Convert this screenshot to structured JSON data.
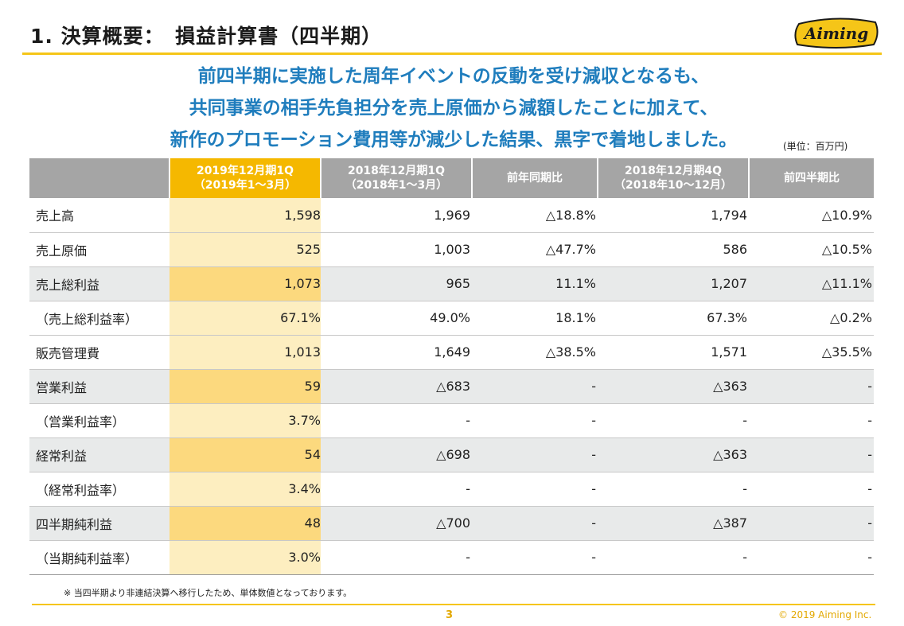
{
  "header": {
    "title": "1. 決算概要：　損益計算書（四半期）",
    "logo_text": "Aiming"
  },
  "headline": {
    "lines": [
      "前四半期に実施した周年イベントの反動を受け減収となるも、",
      "共同事業の相手先負担分を売上原価から減額したことに加えて、",
      "新作のプロモーション費用等が減少した結果、黒字で着地しました。"
    ]
  },
  "unit_note": "(単位：百万円)",
  "table": {
    "columns": [
      {
        "line1": "2019年12月期1Q",
        "line2": "（2019年1〜3月）"
      },
      {
        "line1": "2018年12月期1Q",
        "line2": "（2018年1〜3月）"
      },
      {
        "line1": "前年同期比",
        "line2": ""
      },
      {
        "line1": "2018年12月期4Q",
        "line2": "（2018年10〜12月）"
      },
      {
        "line1": "前四半期比",
        "line2": ""
      }
    ],
    "rows": [
      {
        "label": "売上高",
        "cells": [
          "1,598",
          "1,969",
          "△18.8%",
          "1,794",
          "△10.9%"
        ]
      },
      {
        "label": "売上原価",
        "cells": [
          "525",
          "1,003",
          "△47.7%",
          "586",
          "△10.5%"
        ]
      },
      {
        "label": "売上総利益",
        "cells": [
          "1,073",
          "965",
          "11.1%",
          "1,207",
          "△11.1%"
        ]
      },
      {
        "label": "（売上総利益率）",
        "cells": [
          "67.1%",
          "49.0%",
          "18.1%",
          "67.3%",
          "△0.2%"
        ]
      },
      {
        "label": "販売管理費",
        "cells": [
          "1,013",
          "1,649",
          "△38.5%",
          "1,571",
          "△35.5%"
        ]
      },
      {
        "label": "営業利益",
        "cells": [
          "59",
          "△683",
          "-",
          "△363",
          "-"
        ]
      },
      {
        "label": "（営業利益率）",
        "cells": [
          "3.7%",
          "-",
          "-",
          "-",
          "-"
        ]
      },
      {
        "label": "経常利益",
        "cells": [
          "54",
          "△698",
          "-",
          "△363",
          "-"
        ]
      },
      {
        "label": "（経常利益率）",
        "cells": [
          "3.4%",
          "-",
          "-",
          "-",
          "-"
        ]
      },
      {
        "label": "四半期純利益",
        "cells": [
          "48",
          "△700",
          "-",
          "△387",
          "-"
        ]
      },
      {
        "label": "（当期純利益率）",
        "cells": [
          "3.0%",
          "-",
          "-",
          "-",
          "-"
        ]
      }
    ]
  },
  "footnote": "※ 当四半期より非連結決算へ移行したため、単体数値となっております。",
  "page_number": "3",
  "copyright": "© 2019 Aiming Inc.",
  "colors": {
    "accent": "#f5c518",
    "headline": "#1f7dbd",
    "header_gray": "#a5a5a5",
    "highlight_header": "#f5b800",
    "highlight_cell": "#fdeec0"
  }
}
